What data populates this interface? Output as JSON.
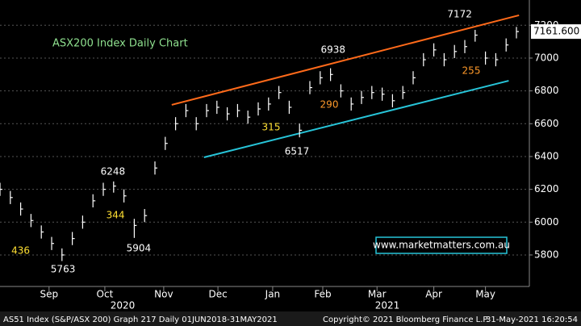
{
  "chart_data": {
    "type": "ohlc",
    "title": "ASX200 Index Daily Chart",
    "x": [
      0,
      4,
      8,
      12,
      16,
      20,
      24,
      28,
      32,
      36,
      40,
      44,
      48,
      52,
      56,
      60,
      64,
      68,
      72,
      76,
      80,
      84,
      88,
      92,
      96,
      100,
      104,
      108,
      112,
      116,
      120,
      124,
      128,
      132,
      136,
      140,
      144,
      148,
      152,
      156,
      160,
      164,
      168,
      172,
      176,
      180,
      184,
      188,
      192,
      196,
      200
    ],
    "high": [
      6240,
      6190,
      6120,
      6050,
      5980,
      5910,
      5840,
      5940,
      6040,
      6170,
      6240,
      6248,
      6200,
      6020,
      6080,
      6370,
      6520,
      6640,
      6720,
      6640,
      6720,
      6740,
      6700,
      6720,
      6680,
      6730,
      6760,
      6830,
      6740,
      6600,
      6860,
      6920,
      6938,
      6840,
      6760,
      6800,
      6830,
      6820,
      6780,
      6830,
      6920,
      7030,
      7090,
      7030,
      7080,
      7110,
      7172,
      7040,
      7030,
      7120,
      7190
    ],
    "low": [
      6160,
      6110,
      6040,
      5970,
      5900,
      5830,
      5763,
      5860,
      5960,
      6090,
      6160,
      6180,
      6120,
      5904,
      6000,
      6290,
      6440,
      6560,
      6640,
      6560,
      6640,
      6660,
      6620,
      6640,
      6600,
      6650,
      6680,
      6750,
      6660,
      6517,
      6780,
      6840,
      6860,
      6760,
      6680,
      6720,
      6750,
      6740,
      6700,
      6750,
      6840,
      6950,
      7010,
      6950,
      7000,
      7030,
      7100,
      6960,
      6950,
      7040,
      7120
    ],
    "close": [
      6200,
      6150,
      6080,
      6010,
      5940,
      5870,
      5800,
      5900,
      6000,
      6130,
      6200,
      6220,
      6160,
      5980,
      6040,
      6330,
      6480,
      6600,
      6680,
      6600,
      6680,
      6700,
      6660,
      6680,
      6640,
      6690,
      6720,
      6790,
      6700,
      6560,
      6820,
      6880,
      6900,
      6800,
      6720,
      6760,
      6790,
      6780,
      6740,
      6790,
      6880,
      6990,
      7050,
      6990,
      7040,
      7070,
      7140,
      7000,
      6990,
      7080,
      7161.6
    ],
    "color": "#ffffff",
    "last_price_label": "7161.600",
    "xlim": [
      0,
      205
    ],
    "xticks": [
      {
        "value": 19,
        "label": "Sep"
      },
      {
        "value": 40.6,
        "label": "Oct"
      },
      {
        "value": 63.4,
        "label": "Nov"
      },
      {
        "value": 84.4,
        "label": "Dec"
      },
      {
        "value": 105.6,
        "label": "Jan"
      },
      {
        "value": 125,
        "label": "Feb"
      },
      {
        "value": 146,
        "label": "Mar"
      },
      {
        "value": 168,
        "label": "Apr"
      },
      {
        "value": 188,
        "label": "May"
      }
    ],
    "year_labels": [
      {
        "value": 47.5,
        "label": "2020"
      },
      {
        "value": 150,
        "label": "2021"
      }
    ],
    "ylim": [
      5608,
      7354
    ],
    "yticks": [
      5800,
      6000,
      6200,
      6400,
      6600,
      6800,
      7000,
      7200
    ],
    "grid": true,
    "trendlines": [
      {
        "color": "#ff6a1a",
        "x": [
          66.5,
          201
        ],
        "y": [
          6715,
          7261
        ]
      },
      {
        "color": "#27c4d8",
        "x": [
          79,
          197
        ],
        "y": [
          6395,
          6862
        ]
      }
    ],
    "annotations": [
      {
        "text": "6248",
        "x": 43.7,
        "y": 6306,
        "color": "#ffffff"
      },
      {
        "text": "344",
        "x": 44.7,
        "y": 6041,
        "color": "#ffe033"
      },
      {
        "text": "5904",
        "x": 53.7,
        "y": 5839,
        "color": "#ffffff"
      },
      {
        "text": "436",
        "x": 8,
        "y": 5824,
        "color": "#ffe033"
      },
      {
        "text": "5763",
        "x": 24.4,
        "y": 5711,
        "color": "#ffffff"
      },
      {
        "text": "315",
        "x": 105,
        "y": 6577,
        "color": "#ffe033"
      },
      {
        "text": "6517",
        "x": 115,
        "y": 6429,
        "color": "#ffffff"
      },
      {
        "text": "290",
        "x": 127.5,
        "y": 6715,
        "color": "#ff9a2a"
      },
      {
        "text": "6938",
        "x": 129,
        "y": 7049,
        "color": "#ffffff"
      },
      {
        "text": "7172",
        "x": 178,
        "y": 7266,
        "color": "#ffffff"
      },
      {
        "text": "255",
        "x": 182.5,
        "y": 6921,
        "color": "#ff9a2a"
      }
    ]
  },
  "link": "www.marketmatters.com.au",
  "footer": {
    "left": "AS51 Index (S&P/ASX 200) Graph 217  Daily 01JUN2018-31MAY2021",
    "middle": "Copyright© 2021 Bloomberg Finance L.P.",
    "right": "31-May-2021 16:20:54"
  }
}
